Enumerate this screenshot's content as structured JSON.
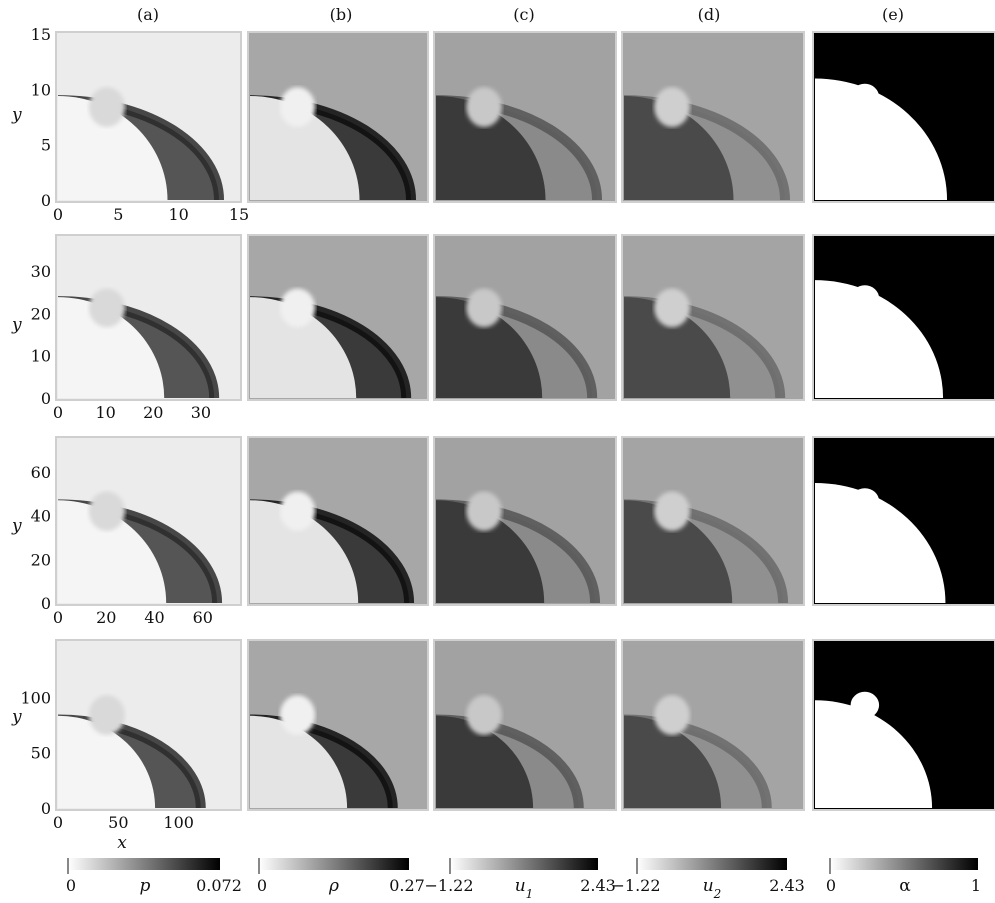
{
  "chart_data": {
    "type": "heatmap",
    "column_labels": [
      "(a)",
      "(b)",
      "(c)",
      "(d)",
      "(e)"
    ],
    "y_axis_label": "y",
    "x_axis_label": "x",
    "rows": [
      {
        "xticks": [
          "0",
          "5",
          "10",
          "15"
        ],
        "yticks": [
          "0",
          "5",
          "10",
          "15"
        ],
        "axis_max": 15,
        "xtick_values": [
          0,
          5,
          10,
          15
        ],
        "ytick_values": [
          0,
          5,
          10,
          15
        ]
      },
      {
        "xticks": [
          "0",
          "10",
          "20",
          "30"
        ],
        "yticks": [
          "0",
          "10",
          "20",
          "30"
        ],
        "axis_max": 38,
        "xtick_values": [
          0,
          10,
          20,
          30
        ],
        "ytick_values": [
          0,
          10,
          20,
          30
        ]
      },
      {
        "xticks": [
          "0",
          "20",
          "40",
          "60"
        ],
        "yticks": [
          "0",
          "20",
          "40",
          "60"
        ],
        "axis_max": 75,
        "xtick_values": [
          0,
          20,
          40,
          60
        ],
        "ytick_values": [
          0,
          20,
          40,
          60
        ]
      },
      {
        "xticks": [
          "0",
          "50",
          "100"
        ],
        "yticks": [
          "0",
          "50",
          "100"
        ],
        "axis_max": 150,
        "xtick_values": [
          0,
          50,
          100
        ],
        "ytick_values": [
          0,
          50,
          100
        ]
      }
    ],
    "colorbars": [
      {
        "variable": "p",
        "min_label": "0",
        "max_label": "0.072",
        "min": 0,
        "max": 0.072
      },
      {
        "variable": "ρ",
        "min_label": "0",
        "max_label": "0.27",
        "min": 0,
        "max": 0.27
      },
      {
        "variable": "u1",
        "min_label": "−1.22",
        "max_label": "2.43",
        "min": -1.22,
        "max": 2.43
      },
      {
        "variable": "u2",
        "min_label": "−1.22",
        "max_label": "2.43",
        "min": -1.22,
        "max": 2.43
      },
      {
        "variable": "α",
        "min_label": "0",
        "max_label": "1",
        "min": 0,
        "max": 1
      }
    ],
    "colormap": "white-to-black grayscale"
  }
}
